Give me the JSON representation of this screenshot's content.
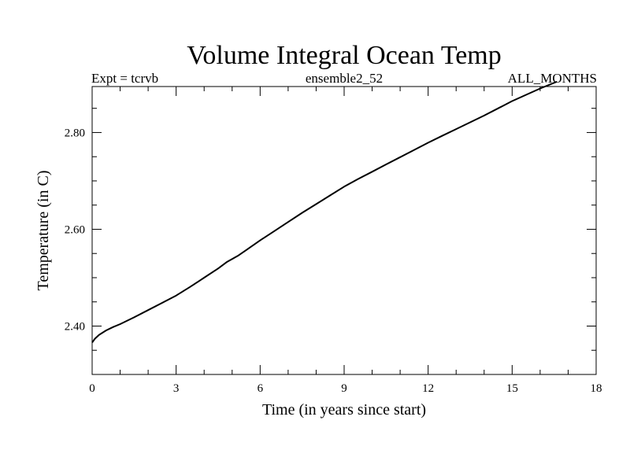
{
  "chart_data": {
    "type": "line",
    "title": "Volume Integral Ocean Temp",
    "subtitle_left": "Expt = tcrvb",
    "subtitle_center": "ensemble2_52",
    "subtitle_right": "ALL_MONTHS",
    "xlabel": "Time (in years since start)",
    "ylabel": "Temperature (in C)",
    "xlim": [
      0,
      18
    ],
    "ylim": [
      2.3,
      2.895
    ],
    "x_ticks": [
      0,
      3,
      6,
      9,
      12,
      15,
      18
    ],
    "x_tick_labels": [
      "0",
      "3",
      "6",
      "9",
      "12",
      "15",
      "18"
    ],
    "x_minor_step": 1,
    "y_ticks": [
      2.4,
      2.6,
      2.8
    ],
    "y_tick_labels": [
      "2.40",
      "2.60",
      "2.80"
    ],
    "y_minor_step": 0.05,
    "grid": false,
    "series": [
      {
        "name": "Volume Integral Ocean Temp",
        "x": [
          0,
          0.1,
          0.25,
          0.5,
          0.75,
          1.0,
          1.5,
          2.0,
          2.5,
          3.0,
          3.5,
          4.0,
          4.5,
          4.8,
          5.2,
          5.5,
          6.0,
          6.5,
          7.0,
          7.5,
          8.0,
          8.5,
          9.0,
          9.5,
          10.0,
          10.5,
          11.0,
          11.5,
          12.0,
          12.5,
          13.0,
          13.5,
          14.0,
          14.5,
          15.0,
          15.5,
          16.0,
          16.6
        ],
        "values": [
          2.366,
          2.374,
          2.382,
          2.391,
          2.398,
          2.404,
          2.418,
          2.433,
          2.448,
          2.463,
          2.481,
          2.5,
          2.519,
          2.532,
          2.545,
          2.557,
          2.577,
          2.596,
          2.615,
          2.634,
          2.652,
          2.67,
          2.688,
          2.704,
          2.719,
          2.734,
          2.749,
          2.764,
          2.779,
          2.793,
          2.807,
          2.821,
          2.835,
          2.85,
          2.865,
          2.878,
          2.891,
          2.905
        ]
      }
    ]
  }
}
